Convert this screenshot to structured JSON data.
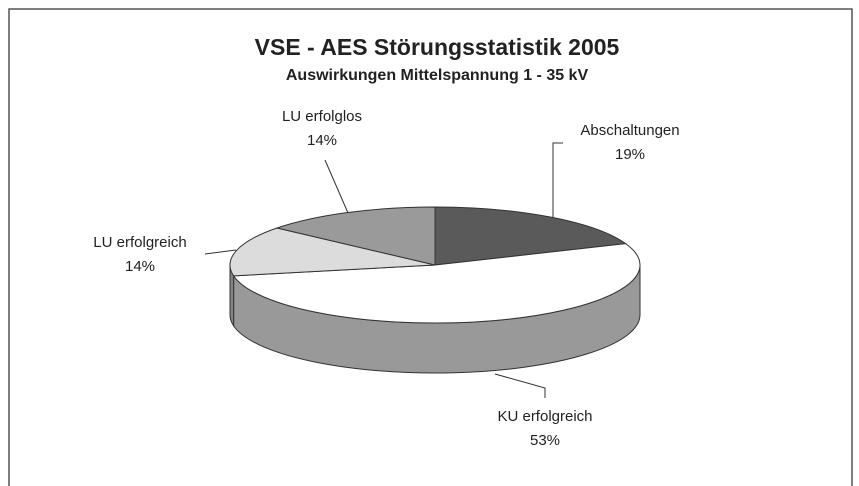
{
  "chart_data": {
    "type": "pie",
    "title": "VSE - AES Störungsstatistik 2005",
    "subtitle": "Auswirkungen Mittelspannung 1 - 35 kV",
    "categories": [
      "Abschaltungen",
      "KU erfolgreich",
      "LU erfolgreich",
      "LU erfolglos"
    ],
    "values": [
      19,
      53,
      14,
      14
    ],
    "value_labels": [
      "19%",
      "53%",
      "14%",
      "14%"
    ],
    "colors": [
      "#5a5a5a",
      "#ffffff",
      "#dcdcdc",
      "#9a9a9a"
    ]
  }
}
